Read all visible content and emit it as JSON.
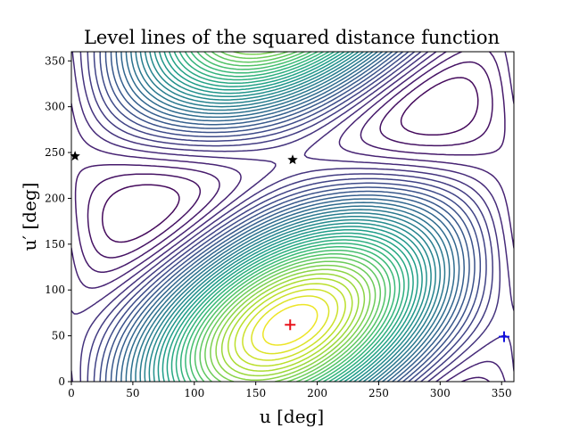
{
  "chart_data": {
    "type": "contour",
    "title": "Level lines of the squared distance function",
    "xlabel": "u [deg]",
    "ylabel": "u′ [deg]",
    "xlim": [
      0,
      360
    ],
    "ylim": [
      0,
      360
    ],
    "xticks": [
      0,
      50,
      100,
      150,
      200,
      250,
      300,
      350
    ],
    "yticks": [
      0,
      50,
      100,
      150,
      200,
      250,
      300,
      350
    ],
    "grid": false,
    "colormap": "viridis",
    "markers": [
      {
        "name": "minimum",
        "symbol": "plus",
        "color": "#e8131c",
        "x": 178,
        "y": 62
      },
      {
        "name": "plus-blue",
        "symbol": "plus",
        "color": "#1010e0",
        "x": 352,
        "y": 49
      },
      {
        "name": "saddle-1",
        "symbol": "star",
        "color": "#000000",
        "x": 180,
        "y": 242
      },
      {
        "name": "saddle-2",
        "symbol": "star",
        "color": "#000000",
        "x": 3,
        "y": 246
      }
    ]
  }
}
